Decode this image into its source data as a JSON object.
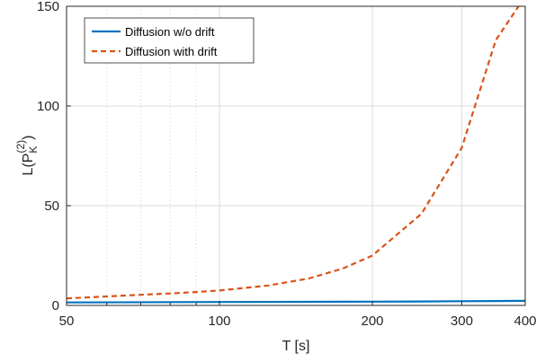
{
  "chart_data": {
    "type": "line",
    "title": "",
    "xlabel": "T [s]",
    "ylabel": {
      "base": "L(P",
      "sub": "K",
      "sup": "(2)",
      "close": ")"
    },
    "x_scale": "log",
    "xlim": [
      50,
      400
    ],
    "ylim": [
      0,
      150
    ],
    "x_ticks": [
      50,
      100,
      200,
      300,
      400
    ],
    "x_minor_ticks": [
      60,
      70,
      80,
      90
    ],
    "y_ticks": [
      0,
      50,
      100,
      150
    ],
    "grid": true,
    "legend_position": "top-left",
    "series": [
      {
        "name": "Diffusion w/o drift",
        "style": "solid",
        "color": "#0072BD",
        "x": [
          50,
          100,
          150,
          200,
          250,
          300,
          350,
          400
        ],
        "y": [
          1.5,
          1.7,
          1.8,
          1.9,
          2.0,
          2.1,
          2.2,
          2.3
        ]
      },
      {
        "name": "Diffusion with drift",
        "style": "dashed",
        "color": "#D95319",
        "x": [
          50,
          60,
          70,
          80,
          90,
          100,
          125,
          150,
          175,
          200,
          250,
          300,
          350,
          400
        ],
        "y": [
          3.5,
          4.5,
          5.3,
          6.0,
          6.7,
          7.5,
          10.0,
          13.5,
          18.5,
          25,
          46,
          79,
          133,
          155
        ]
      }
    ]
  }
}
